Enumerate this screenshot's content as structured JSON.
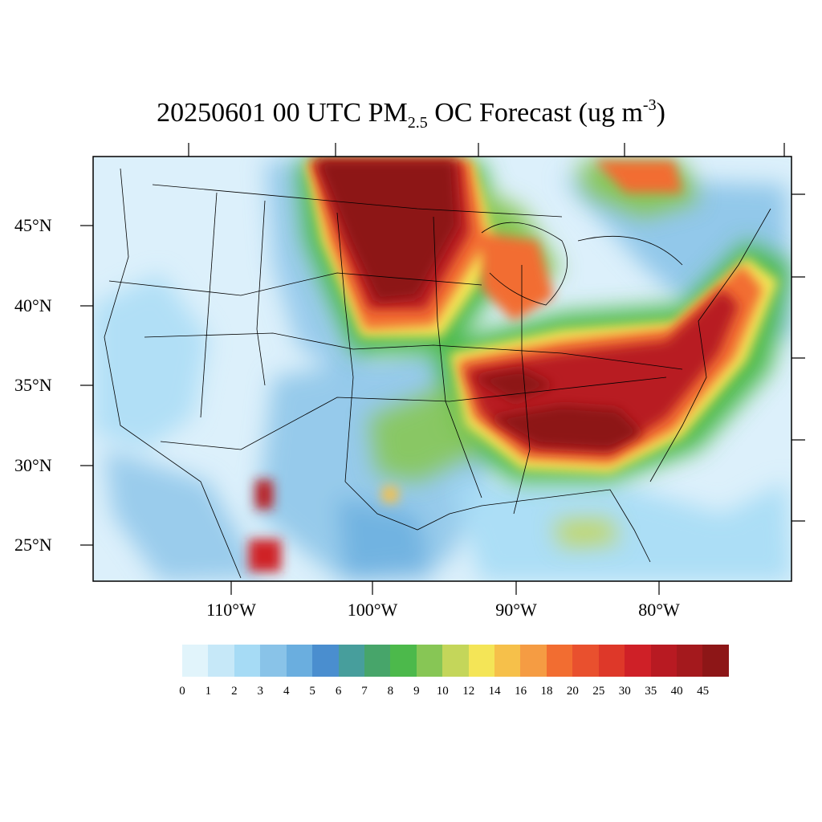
{
  "title": {
    "prefix": "20250601 00 UTC PM",
    "subscript": "2.5",
    "middle": " OC Forecast (ug m",
    "superscript": "-3",
    "suffix": ")"
  },
  "map": {
    "lat_labels": [
      "45°N",
      "40°N",
      "35°N",
      "30°N",
      "25°N"
    ],
    "lon_labels": [
      "110°W",
      "100°W",
      "90°W",
      "80°W"
    ],
    "background_color": "#dcf0fb"
  },
  "colorbar": {
    "labels": [
      "0",
      "1",
      "2",
      "3",
      "4",
      "5",
      "6",
      "7",
      "8",
      "9",
      "10",
      "12",
      "14",
      "16",
      "18",
      "20",
      "25",
      "30",
      "35",
      "40",
      "45"
    ],
    "colors": [
      "#e1f4fb",
      "#c6e8f8",
      "#a6dbf5",
      "#89c3e8",
      "#6aaedf",
      "#4a8ecf",
      "#479e9c",
      "#47a56a",
      "#4cb94b",
      "#87c655",
      "#c4d65a",
      "#f4e557",
      "#f6c04a",
      "#f59c43",
      "#f26d31",
      "#e9502e",
      "#de3829",
      "#cf2027",
      "#b81a22",
      "#a4191d",
      "#8d1617"
    ]
  }
}
